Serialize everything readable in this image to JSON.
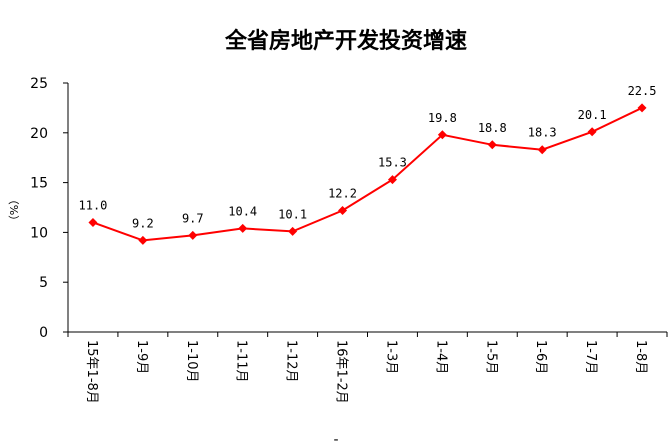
{
  "chart_data": {
    "type": "line",
    "title": "全省房地产开发投资增速",
    "ylabel": "（%）",
    "xlabel": "",
    "categories": [
      "15年1-8月",
      "1-9月",
      "1-10月",
      "1-11月",
      "1-12月",
      "16年1-2月",
      "1-3月",
      "1-4月",
      "1-5月",
      "1-6月",
      "1-7月",
      "1-8月"
    ],
    "y_ticks": [
      "0",
      "5",
      "10",
      "15",
      "20",
      "25"
    ],
    "ylim": [
      0,
      25
    ],
    "grid": false,
    "series": [
      {
        "values": [
          11.0,
          9.2,
          9.7,
          10.4,
          10.1,
          12.2,
          15.3,
          19.8,
          18.8,
          18.3,
          20.1,
          22.5
        ],
        "labels": [
          "11.0",
          "9.2",
          "9.7",
          "10.4",
          "10.1",
          "12.2",
          "15.3",
          "19.8",
          "18.8",
          "18.3",
          "20.1",
          "22.5"
        ],
        "color": "#ff0000",
        "marker": "diamond"
      }
    ],
    "bottom_mark": "-"
  }
}
